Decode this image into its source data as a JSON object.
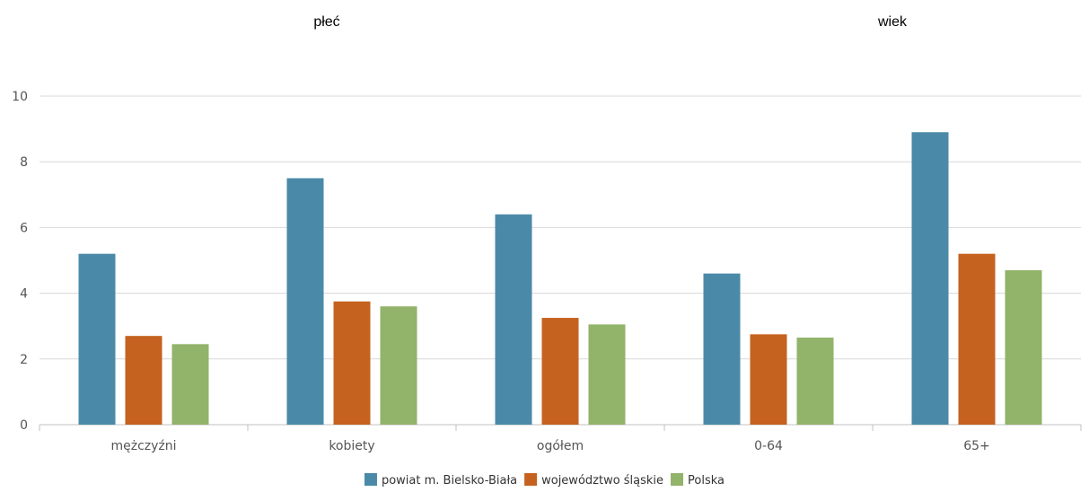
{
  "group_headings": {
    "left": "płeć",
    "right": "wiek"
  },
  "colors": {
    "series_0": "#4a8aa8",
    "series_1": "#c5621f",
    "series_2": "#92b36a",
    "grid": "#d8d8d8",
    "axis": "#c0c0c0"
  },
  "chart_data": {
    "type": "bar",
    "categories": [
      "mężczyźni",
      "kobiety",
      "ogółem",
      "0-64",
      "65+"
    ],
    "series": [
      {
        "name": "powiat m. Bielsko-Biała",
        "values": [
          5.2,
          7.5,
          6.4,
          4.6,
          8.9
        ]
      },
      {
        "name": "województwo śląskie",
        "values": [
          2.7,
          3.75,
          3.25,
          2.75,
          5.2
        ]
      },
      {
        "name": "Polska",
        "values": [
          2.45,
          3.6,
          3.05,
          2.65,
          4.7
        ]
      }
    ],
    "ylim": [
      0,
      10
    ],
    "yticks": [
      "0",
      "2",
      "4",
      "6",
      "8",
      "10"
    ],
    "grid": true,
    "legend_position": "bottom-center",
    "title": "",
    "xlabel": "",
    "ylabel": ""
  }
}
